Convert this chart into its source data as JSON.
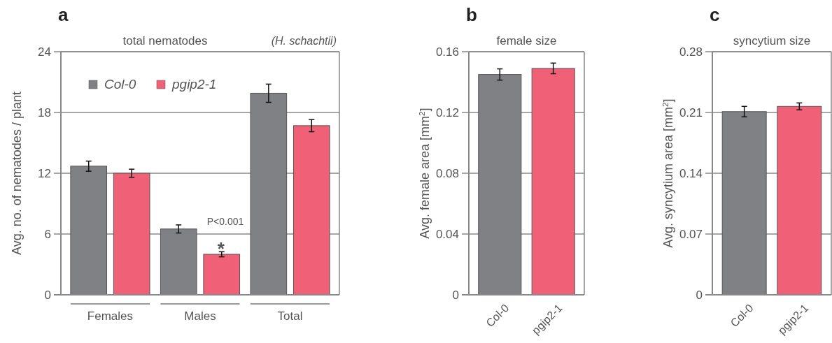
{
  "chart_data": [
    {
      "type": "bar",
      "title": "a",
      "subtitle": "total nematodes",
      "ylabel": "Avg. no. of nematodes / plant",
      "categories": [
        "Females",
        "Males",
        "Total"
      ],
      "series": [
        {
          "name": "Col-0",
          "color": "#808184",
          "values": [
            12.7,
            6.5,
            19.9
          ],
          "errors": [
            0.5,
            0.4,
            0.9
          ]
        },
        {
          "name": "pgip2-1",
          "color": "#f06177",
          "values": [
            12.0,
            4.0,
            16.7
          ],
          "errors": [
            0.4,
            0.25,
            0.6
          ]
        }
      ],
      "ylim": [
        0,
        24
      ],
      "yticks": [
        0,
        6,
        12,
        18,
        24
      ],
      "grid": "y",
      "legend": "top left",
      "annotations": [
        "(H. schachtii)",
        "P<0.001",
        {
          "text": "*",
          "x": "Males",
          "y": 4.9
        }
      ]
    },
    {
      "type": "bar",
      "title": "b",
      "subtitle": "female size",
      "ylabel": "Avg. female area [mm$^{2}$]",
      "categories": [
        "Col-0",
        "pgip2-1"
      ],
      "values": [
        0.145,
        0.149
      ],
      "colors": [
        "#808184",
        "#f06177"
      ],
      "errors": [
        0.0037,
        0.0035
      ],
      "ylim": [
        0,
        0.16
      ],
      "yticks": [
        0,
        0.04,
        0.08,
        0.12,
        0.16
      ],
      "grid": "y"
    },
    {
      "type": "bar",
      "title": "c",
      "subtitle": "syncytium size",
      "ylabel": "Avg. syncytium area [mm$^{2}$]",
      "categories": [
        "Col-0",
        "pgip2-1"
      ],
      "values": [
        0.211,
        0.217
      ],
      "colors": [
        "#808184",
        "#f06177"
      ],
      "errors": [
        0.006,
        0.004
      ],
      "ylim": [
        0,
        0.28
      ],
      "yticks": [
        0,
        0.07,
        0.14,
        0.21,
        0.28
      ],
      "grid": "y"
    }
  ]
}
